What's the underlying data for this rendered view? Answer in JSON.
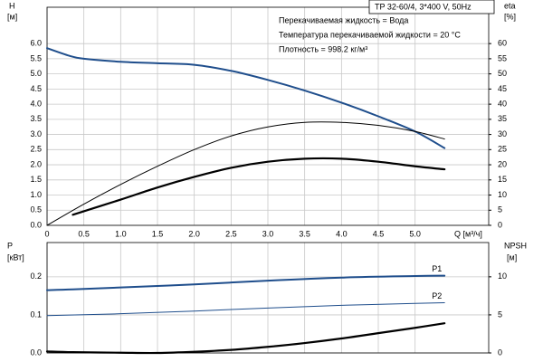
{
  "chart_data": [
    {
      "type": "line",
      "title": "TP 32-60/4, 3*400 V, 50Hz",
      "annotations": [
        "Перекачиваемая жидкость = Вода",
        "Температура перекачиваемой жидкости = 20 °C",
        "Плотность = 998.2 кг/м³"
      ],
      "y_label": [
        "H",
        "[м]"
      ],
      "y2_label": [
        "eta",
        "[%]"
      ],
      "x_label": "Q [м³/ч]",
      "xlim": [
        0,
        6
      ],
      "xticks": [
        0,
        0.5,
        {
          "value": 1,
          "label": "1.0"
        },
        1.5,
        {
          "value": 2,
          "label": "2.0"
        },
        2.5,
        {
          "value": 3,
          "label": "3.0"
        },
        3.5,
        {
          "value": 4,
          "label": "4.0"
        },
        4.5,
        {
          "value": 5,
          "label": "5.0"
        }
      ],
      "ylim": [
        0,
        7.2
      ],
      "yticks": [
        {
          "value": 0,
          "label": "0.0"
        },
        0.5,
        {
          "value": 1,
          "label": "1.0"
        },
        1.5,
        {
          "value": 2,
          "label": "2.0"
        },
        2.5,
        {
          "value": 3,
          "label": "3.0"
        },
        3.5,
        {
          "value": 4,
          "label": "4.0"
        },
        4.5,
        {
          "value": 5,
          "label": "5.0"
        },
        5.5,
        {
          "value": 6,
          "label": "6.0"
        }
      ],
      "y2lim": [
        0,
        72
      ],
      "y2ticks": [
        0,
        5,
        10,
        15,
        20,
        25,
        30,
        35,
        40,
        45,
        50,
        55,
        60
      ],
      "grid": true,
      "series": [
        {
          "color": "#1f4e8c",
          "width": 2,
          "x": [
            0,
            0.3,
            0.5,
            1,
            1.5,
            2,
            2.5,
            3,
            3.5,
            4,
            4.5,
            5,
            5.4
          ],
          "values": [
            5.85,
            5.6,
            5.5,
            5.4,
            5.35,
            5.3,
            5.1,
            4.8,
            4.45,
            4.05,
            3.6,
            3.1,
            2.55
          ]
        },
        {
          "color": "#000000",
          "width": 1,
          "axis": "y2",
          "x": [
            0,
            0.5,
            1,
            1.5,
            2,
            2.5,
            3,
            3.5,
            4,
            4.5,
            5,
            5.4
          ],
          "values": [
            0,
            7,
            13.5,
            19.5,
            25,
            29.5,
            32.5,
            34,
            34,
            33,
            31,
            28.5
          ]
        },
        {
          "color": "#000000",
          "width": 2.2,
          "axis": "y2",
          "x": [
            0.35,
            1,
            1.5,
            2,
            2.5,
            3,
            3.5,
            4,
            4.5,
            5,
            5.4
          ],
          "values": [
            3.5,
            8.5,
            12.5,
            16,
            19,
            21,
            22,
            22,
            21,
            19.5,
            18.5
          ]
        }
      ]
    },
    {
      "type": "line",
      "y_label": [
        "P",
        "[кВт]"
      ],
      "y2_label": [
        "NPSH",
        "[м]"
      ],
      "xlim": [
        0,
        6
      ],
      "ylim": [
        0,
        0.29
      ],
      "yticks": [
        {
          "value": 0,
          "label": "0.0"
        },
        0.1,
        0.2
      ],
      "y2lim": [
        0,
        14.5
      ],
      "y2ticks": [
        0,
        5,
        10
      ],
      "grid": true,
      "series": [
        {
          "name": "P1",
          "color": "#1f4e8c",
          "width": 2,
          "x": [
            0,
            0.35,
            1,
            2,
            3,
            4,
            5,
            5.4
          ],
          "values": [
            0.165,
            0.167,
            0.172,
            0.18,
            0.19,
            0.198,
            0.202,
            0.203
          ]
        },
        {
          "name": "P2",
          "color": "#1f4e8c",
          "width": 1,
          "x": [
            0,
            1,
            2,
            3,
            4,
            5,
            5.4
          ],
          "values": [
            0.098,
            0.103,
            0.11,
            0.118,
            0.125,
            0.13,
            0.132
          ]
        },
        {
          "color": "#000000",
          "width": 2.2,
          "axis": "y2",
          "x": [
            0,
            0.35,
            1,
            1.5,
            2,
            2.5,
            3,
            3.5,
            4,
            4.5,
            5,
            5.4
          ],
          "values": [
            0.2,
            0.1,
            0.03,
            0,
            0.15,
            0.4,
            0.8,
            1.3,
            1.9,
            2.6,
            3.3,
            3.9
          ]
        }
      ]
    }
  ]
}
